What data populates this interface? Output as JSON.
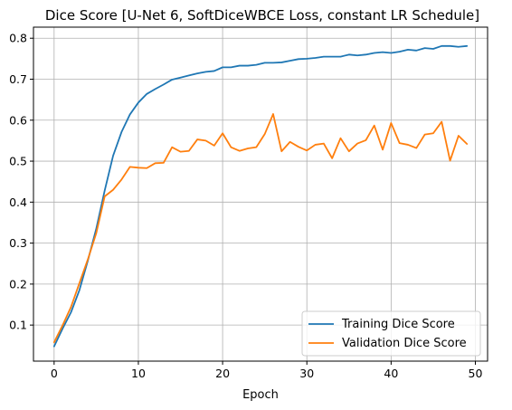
{
  "chart_data": {
    "type": "line",
    "title": "Dice Score [U-Net 6, SoftDiceWBCE Loss, constant LR Schedule]",
    "xlabel": "Epoch",
    "ylabel": "",
    "xlim": [
      -2.45,
      51.45
    ],
    "ylim": [
      0.012,
      0.827
    ],
    "xticks": [
      0,
      10,
      20,
      30,
      40,
      50
    ],
    "yticks": [
      0.1,
      0.2,
      0.3,
      0.4,
      0.5,
      0.6,
      0.7,
      0.8
    ],
    "xtick_labels": [
      "0",
      "10",
      "20",
      "30",
      "40",
      "50"
    ],
    "ytick_labels": [
      "0.1",
      "0.2",
      "0.3",
      "0.4",
      "0.5",
      "0.6",
      "0.7",
      "0.8"
    ],
    "grid": true,
    "legend_position": "bottom-right",
    "x": [
      0,
      1,
      2,
      3,
      4,
      5,
      6,
      7,
      8,
      9,
      10,
      11,
      12,
      13,
      14,
      15,
      16,
      17,
      18,
      19,
      20,
      21,
      22,
      23,
      24,
      25,
      26,
      27,
      28,
      29,
      30,
      31,
      32,
      33,
      34,
      35,
      36,
      37,
      38,
      39,
      40,
      41,
      42,
      43,
      44,
      45,
      46,
      47,
      48,
      49
    ],
    "series": [
      {
        "name": "Training Dice Score",
        "color": "#1f77b4",
        "values": [
          0.048,
          0.091,
          0.131,
          0.185,
          0.257,
          0.335,
          0.428,
          0.513,
          0.571,
          0.614,
          0.643,
          0.664,
          0.676,
          0.687,
          0.699,
          0.704,
          0.709,
          0.714,
          0.718,
          0.72,
          0.729,
          0.729,
          0.733,
          0.733,
          0.735,
          0.74,
          0.74,
          0.741,
          0.745,
          0.749,
          0.75,
          0.752,
          0.755,
          0.755,
          0.755,
          0.76,
          0.758,
          0.76,
          0.764,
          0.766,
          0.764,
          0.767,
          0.772,
          0.77,
          0.776,
          0.774,
          0.781,
          0.781,
          0.779,
          0.781
        ]
      },
      {
        "name": "Validation Dice Score",
        "color": "#ff7f0e",
        "values": [
          0.058,
          0.099,
          0.144,
          0.202,
          0.26,
          0.324,
          0.414,
          0.43,
          0.455,
          0.486,
          0.484,
          0.483,
          0.495,
          0.496,
          0.534,
          0.523,
          0.525,
          0.553,
          0.55,
          0.538,
          0.568,
          0.534,
          0.525,
          0.531,
          0.534,
          0.566,
          0.615,
          0.524,
          0.547,
          0.535,
          0.526,
          0.54,
          0.543,
          0.507,
          0.556,
          0.524,
          0.543,
          0.551,
          0.587,
          0.528,
          0.593,
          0.544,
          0.54,
          0.532,
          0.565,
          0.568,
          0.596,
          0.501,
          0.562,
          0.542
        ]
      }
    ]
  }
}
